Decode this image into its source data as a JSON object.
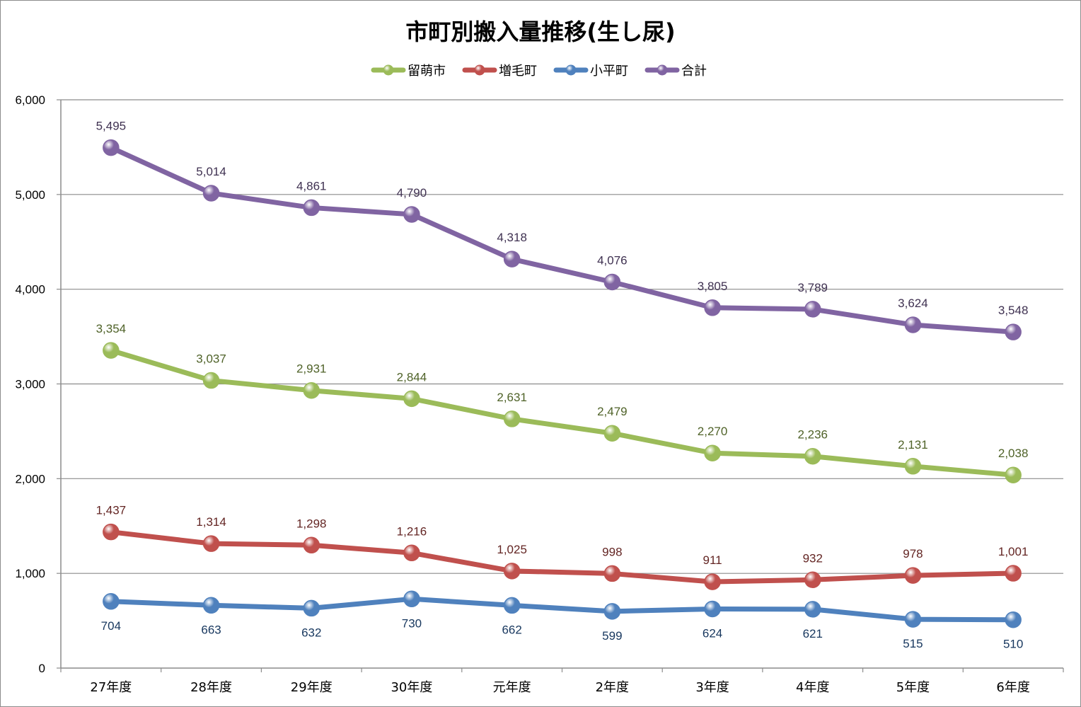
{
  "chart_data": {
    "type": "line",
    "title": "市町別搬入量推移(生し尿)",
    "xlabel": "",
    "ylabel": "",
    "ylim": [
      0,
      6000
    ],
    "yticks": [
      0,
      1000,
      2000,
      3000,
      4000,
      5000,
      6000
    ],
    "ytick_labels": [
      "0",
      "1,000",
      "2,000",
      "3,000",
      "4,000",
      "5,000",
      "6,000"
    ],
    "grid": true,
    "legend_position": "top-center",
    "categories": [
      "27年度",
      "28年度",
      "29年度",
      "30年度",
      "元年度",
      "2年度",
      "3年度",
      "4年度",
      "5年度",
      "6年度"
    ],
    "series": [
      {
        "name": "留萌市",
        "color": "#9bbb59",
        "label_color": "#4f6228",
        "values": [
          3354,
          3037,
          2931,
          2844,
          2631,
          2479,
          2270,
          2236,
          2131,
          2038
        ],
        "labels": [
          "3,354",
          "3,037",
          "2,931",
          "2,844",
          "2,631",
          "2,479",
          "2,270",
          "2,236",
          "2,131",
          "2,038"
        ]
      },
      {
        "name": "増毛町",
        "color": "#c0504d",
        "label_color": "#632523",
        "values": [
          1437,
          1314,
          1298,
          1216,
          1025,
          998,
          911,
          932,
          978,
          1001
        ],
        "labels": [
          "1,437",
          "1,314",
          "1,298",
          "1,216",
          "1,025",
          "998",
          "911",
          "932",
          "978",
          "1,001"
        ]
      },
      {
        "name": "小平町",
        "color": "#4f81bd",
        "label_color": "#17375e",
        "values": [
          704,
          663,
          632,
          730,
          662,
          599,
          624,
          621,
          515,
          510
        ],
        "labels": [
          "704",
          "663",
          "632",
          "730",
          "662",
          "599",
          "624",
          "621",
          "515",
          "510"
        ]
      },
      {
        "name": "合計",
        "color": "#8064a2",
        "label_color": "#3f3151",
        "values": [
          5495,
          5014,
          4861,
          4790,
          4318,
          4076,
          3805,
          3789,
          3624,
          3548
        ],
        "labels": [
          "5,495",
          "5,014",
          "4,861",
          "4,790",
          "4,318",
          "4,076",
          "3,805",
          "3,789",
          "3,624",
          "3,548"
        ]
      }
    ]
  }
}
